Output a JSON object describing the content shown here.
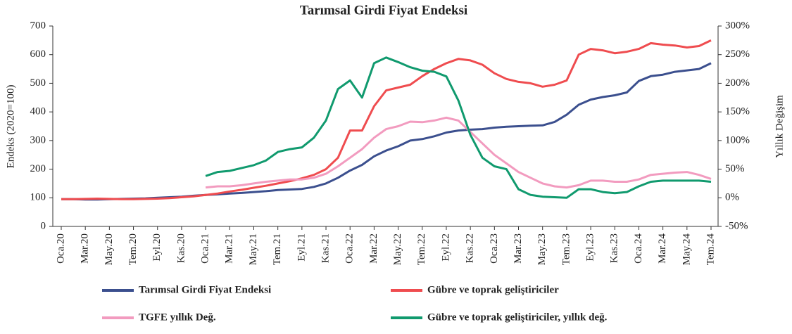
{
  "chart_data": {
    "type": "line",
    "title": "Tarımsal Girdi Fiyat Endeksi",
    "y_label": "Endeks (2020=100)",
    "y2_label": "Yıllık Değişim",
    "categories": [
      "Oca.20",
      null,
      "Mar.20",
      null,
      "May.20",
      null,
      "Tem.20",
      null,
      "Eyl.20",
      null,
      "Kas.20",
      null,
      "Oca.21",
      null,
      "Mar.21",
      null,
      "May.21",
      null,
      "Tem.21",
      null,
      "Eyl.21",
      null,
      "Kas.21",
      null,
      "Oca.22",
      null,
      "Mar.22",
      null,
      "May.22",
      null,
      "Tem.22",
      null,
      "Eyl.22",
      null,
      "Kas.22",
      null,
      "Oca.23",
      null,
      "Mar.23",
      null,
      "May.23",
      null,
      "Tem.23",
      null,
      "Eyl.23",
      null,
      "Kas.23",
      null,
      "Oca.24",
      null,
      "Mar.24",
      null,
      "May.24",
      null,
      "Tem.24"
    ],
    "ylim": [
      0,
      700
    ],
    "yticks": [
      0,
      100,
      200,
      300,
      400,
      500,
      600,
      700
    ],
    "y2lim": [
      -50,
      300
    ],
    "y2ticks": [
      {
        "value": -50,
        "label": "-50%"
      },
      {
        "value": 0,
        "label": "0%"
      },
      {
        "value": 50,
        "label": "50%"
      },
      {
        "value": 100,
        "label": "100%"
      },
      {
        "value": 150,
        "label": "150%"
      },
      {
        "value": 200,
        "label": "200%"
      },
      {
        "value": 250,
        "label": "250%"
      },
      {
        "value": 300,
        "label": "300%"
      }
    ],
    "series": [
      {
        "name": "Tarımsal Girdi Fiyat Endeksi",
        "color": "#3b4f8e",
        "values": [
          95,
          95,
          94,
          94,
          95,
          96,
          97,
          98,
          100,
          102,
          104,
          107,
          110,
          112,
          115,
          117,
          120,
          123,
          127,
          129,
          131,
          138,
          150,
          170,
          195,
          215,
          245,
          265,
          280,
          300,
          305,
          315,
          328,
          335,
          338,
          340,
          345,
          348,
          350,
          352,
          353,
          365,
          390,
          425,
          443,
          452,
          458,
          468,
          508,
          525,
          530,
          540,
          545,
          550,
          570
        ]
      },
      {
        "name": "Gübre ve toprak geliştiriciler",
        "color": "#ef4c4f",
        "values": [
          95,
          95,
          96,
          97,
          96,
          95,
          95,
          96,
          97,
          99,
          102,
          105,
          110,
          115,
          122,
          128,
          135,
          142,
          150,
          158,
          168,
          180,
          200,
          240,
          335,
          335,
          420,
          475,
          485,
          495,
          525,
          550,
          570,
          585,
          580,
          565,
          535,
          515,
          505,
          500,
          488,
          495,
          510,
          600,
          620,
          615,
          605,
          610,
          620,
          640,
          635,
          632,
          625,
          630,
          650
        ]
      },
      {
        "name": "TGFE yıllık Değ.",
        "color": "#f29bbf",
        "axis": "y2",
        "values": [
          null,
          null,
          null,
          null,
          null,
          null,
          null,
          null,
          null,
          null,
          null,
          null,
          18,
          20,
          20,
          22,
          25,
          28,
          30,
          32,
          32,
          35,
          42,
          55,
          70,
          85,
          105,
          120,
          125,
          133,
          132,
          135,
          140,
          135,
          115,
          95,
          75,
          60,
          45,
          35,
          25,
          20,
          18,
          22,
          30,
          30,
          28,
          28,
          32,
          40,
          42,
          44,
          45,
          40,
          33
        ]
      },
      {
        "name": "Gübre ve toprak geliştiriciler, yıllık değ.",
        "color": "#109a6e",
        "axis": "y2",
        "values": [
          null,
          null,
          null,
          null,
          null,
          null,
          null,
          null,
          null,
          null,
          null,
          null,
          38,
          45,
          47,
          52,
          57,
          65,
          80,
          85,
          88,
          105,
          135,
          190,
          205,
          175,
          235,
          245,
          237,
          228,
          222,
          220,
          212,
          170,
          110,
          70,
          55,
          50,
          15,
          5,
          2,
          1,
          0,
          15,
          15,
          10,
          8,
          10,
          20,
          28,
          30,
          30,
          30,
          30,
          28
        ]
      }
    ]
  }
}
